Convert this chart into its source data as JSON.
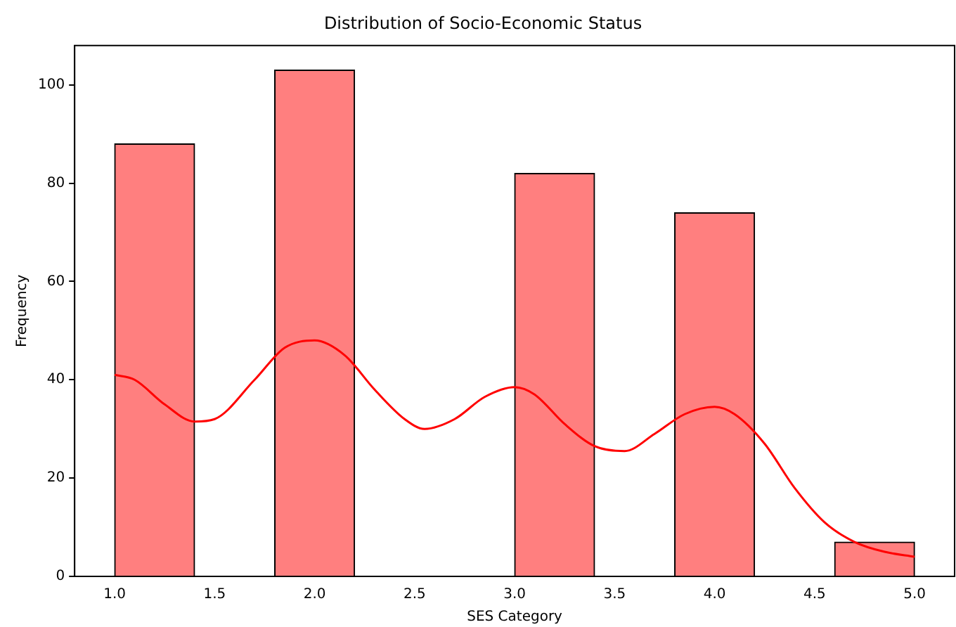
{
  "chart_data": {
    "type": "histogram",
    "title": "Distribution of Socio-Economic Status",
    "xlabel": "SES Category",
    "ylabel": "Frequency",
    "bins": [
      1.0,
      1.4,
      1.8,
      2.2,
      2.6,
      3.0,
      3.4,
      3.8,
      4.2,
      4.6,
      5.0
    ],
    "series": [
      {
        "color": "#ff7f7f",
        "values": [
          88,
          0,
          103,
          0,
          0,
          82,
          0,
          74,
          0,
          7
        ]
      },
      {
        "type": "line",
        "color": "#ff0000",
        "x": [
          1.0,
          1.1,
          1.25,
          1.4,
          1.5,
          1.7,
          1.85,
          2.0,
          2.15,
          2.3,
          2.45,
          2.55,
          2.7,
          2.85,
          3.0,
          3.1,
          3.25,
          3.4,
          3.55,
          3.7,
          3.85,
          4.0,
          4.1,
          4.25,
          4.4,
          4.55,
          4.7,
          4.85,
          5.0
        ],
        "values": [
          41,
          40,
          35,
          31.5,
          32,
          40,
          46.5,
          48,
          45,
          38,
          32,
          30,
          32,
          36.5,
          38.5,
          37,
          31,
          26.5,
          25.5,
          29,
          33,
          34.5,
          33,
          27,
          18,
          11,
          7,
          5,
          4
        ]
      }
    ],
    "xlim": [
      0.8,
      5.2
    ],
    "xticks": [
      {
        "value": 1,
        "label": "1.0"
      },
      {
        "value": 1.5,
        "label": "1.5"
      },
      {
        "value": 2,
        "label": "2.0"
      },
      {
        "value": 2.5,
        "label": "2.5"
      },
      {
        "value": 3,
        "label": "3.0"
      },
      {
        "value": 3.5,
        "label": "3.5"
      },
      {
        "value": 4,
        "label": "4.0"
      },
      {
        "value": 4.5,
        "label": "4.5"
      },
      {
        "value": 5,
        "label": "5.0"
      }
    ],
    "ylim": [
      0,
      108
    ],
    "yticks": [
      0,
      20,
      40,
      60,
      80,
      100
    ],
    "grid": false,
    "legend": false
  }
}
